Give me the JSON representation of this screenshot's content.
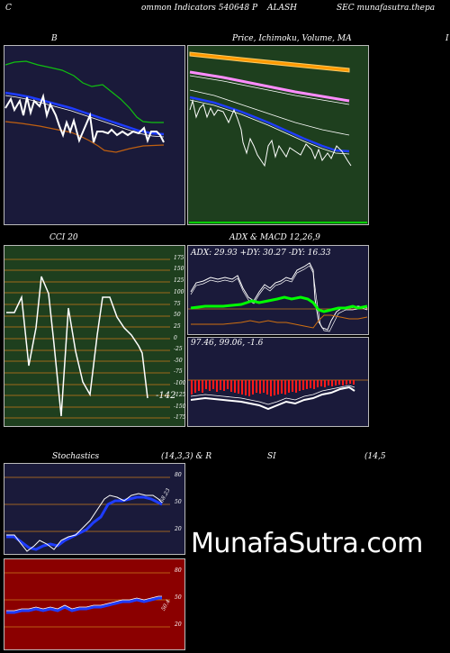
{
  "header": {
    "left": "C",
    "title": "ommon  Indicators 540648  P",
    "mid": "ALASH",
    "right": "SEC munafasutra.thepa"
  },
  "bb": {
    "label": "B"
  },
  "price": {
    "label": "Price,  Ichimoku,  Volume, MA",
    "label_right": "I"
  },
  "cci": {
    "label": "CCI 20",
    "value_label": "-142",
    "scale": [
      "175",
      "150",
      "125",
      "100",
      "75",
      "50",
      "25",
      "0",
      "-25",
      "-50",
      "-75",
      "-100",
      "-125",
      "-150",
      "-175"
    ]
  },
  "adx": {
    "label": "ADX  & MACD 12,26,9",
    "readout": "ADX: 29.93  +DY: 30.27 -DY: 16.33"
  },
  "macd": {
    "readout": "97.46,  99.06,  -1.6"
  },
  "stoch": {
    "label": "Stochastics",
    "params": "(14,3,3) & R",
    "value_label": "58.23",
    "scale": [
      "80",
      "50",
      "20"
    ]
  },
  "rsi": {
    "label": "SI",
    "params": "(14,5",
    "value_label": "50.4",
    "scale": [
      "80",
      "50",
      "20"
    ]
  },
  "watermark": "MunafaSutra.com",
  "colors": {
    "panel_navy": "#1a1a3a",
    "panel_green": "#1e3f1e",
    "panel_red": "#8b0000",
    "grid_orange": "#c87a1a",
    "blue": "#1e3cff",
    "orange_band": "#ff9a00",
    "lime": "#00ff00"
  }
}
